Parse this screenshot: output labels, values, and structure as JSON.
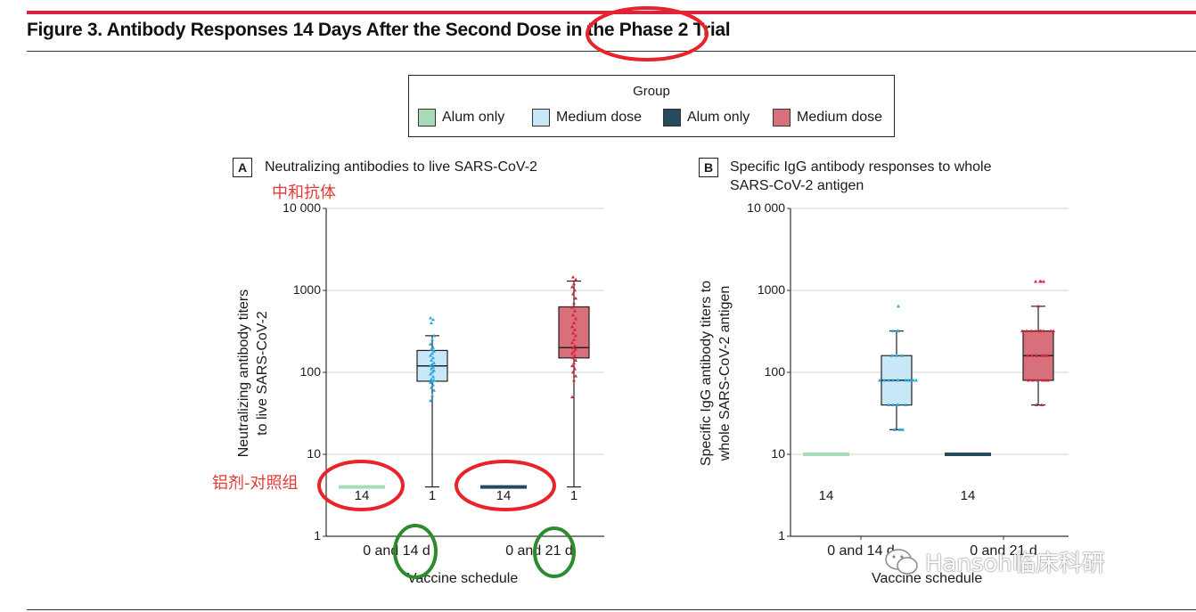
{
  "figure": {
    "title": "Figure 3. Antibody Responses 14 Days After the Second Dose in the Phase 2 Trial"
  },
  "legend": {
    "title": "Group",
    "items": [
      {
        "label": "Alum only",
        "color": "#a8dcb8"
      },
      {
        "label": "Medium dose",
        "color": "#c8e8f8"
      },
      {
        "label": "Alum only",
        "color": "#254c5c"
      },
      {
        "label": "Medium dose",
        "color": "#d8707c"
      }
    ]
  },
  "annotations": {
    "neutralizing_cn": "中和抗体",
    "alum_control_cn": "铝剂-对照组",
    "watermark": "Hansoh临床科研"
  },
  "chart_data": [
    {
      "type": "box",
      "panel": "A",
      "title": "Neutralizing antibodies to live SARS-CoV-2",
      "ylabel_lines": [
        "Neutralizing antibody titers",
        "to live SARS-CoV-2"
      ],
      "xlabel": "Vaccine schedule",
      "yscale": "log",
      "ylim": [
        1,
        10000
      ],
      "yticks": [
        1,
        10,
        100,
        1000,
        10000
      ],
      "ytick_labels": [
        "1",
        "10",
        "100",
        "1000",
        "10 000"
      ],
      "grid": true,
      "categories": [
        "0 and 14 d",
        "0 and 21 d"
      ],
      "groups": [
        {
          "name": "Alum only",
          "category": "0 and 14 d",
          "color": "#a8dcb8",
          "constant": 4,
          "n_label": "14"
        },
        {
          "name": "Medium dose",
          "category": "0 and 14 d",
          "color": "#c8e8f8",
          "point_color": "#29a8e0",
          "whisker_low": 4,
          "q1": 78,
          "median": 120,
          "q3": 185,
          "whisker_high": 280,
          "n_label": "1",
          "points": [
            45,
            52,
            60,
            65,
            70,
            75,
            78,
            80,
            82,
            88,
            95,
            100,
            105,
            110,
            115,
            120,
            125,
            130,
            140,
            150,
            160,
            170,
            180,
            190,
            200,
            220,
            250,
            280,
            400,
            440,
            460
          ]
        },
        {
          "name": "Alum only",
          "category": "0 and 21 d",
          "color": "#254c5c",
          "constant": 4,
          "n_label": "14"
        },
        {
          "name": "Medium dose",
          "category": "0 and 21 d",
          "color": "#d8707c",
          "point_color": "#d8243c",
          "whisker_low": 4,
          "q1": 150,
          "median": 200,
          "q3": 630,
          "whisker_high": 1300,
          "n_label": "1",
          "points": [
            50,
            80,
            90,
            100,
            110,
            120,
            130,
            140,
            150,
            160,
            170,
            180,
            190,
            200,
            210,
            230,
            250,
            280,
            300,
            330,
            360,
            400,
            450,
            500,
            560,
            620,
            700,
            800,
            900,
            1000,
            1100,
            1200,
            1350,
            1450
          ]
        }
      ]
    },
    {
      "type": "box",
      "panel": "B",
      "title": "Specific IgG antibody responses to whole SARS-CoV-2 antigen",
      "title_lines": [
        "Specific IgG antibody responses to whole",
        "SARS-CoV-2 antigen"
      ],
      "ylabel_lines": [
        "Specific IgG antibody titers to",
        "whole SARS-CoV-2 antigen"
      ],
      "xlabel": "Vaccine schedule",
      "yscale": "log",
      "ylim": [
        1,
        10000
      ],
      "yticks": [
        1,
        10,
        100,
        1000,
        10000
      ],
      "ytick_labels": [
        "1",
        "10",
        "100",
        "1000",
        "10 000"
      ],
      "grid": true,
      "categories": [
        "0 and 14 d",
        "0 and 21 d"
      ],
      "groups": [
        {
          "name": "Alum only",
          "category": "0 and 14 d",
          "color": "#a8dcb8",
          "constant": 10,
          "n_label": "14"
        },
        {
          "name": "Medium dose",
          "category": "0 and 14 d",
          "color": "#c8e8f8",
          "point_color": "#29a8e0",
          "whisker_low": 20,
          "q1": 40,
          "median": 80,
          "q3": 160,
          "whisker_high": 320,
          "n_label": "",
          "points": [
            20,
            20,
            20,
            20,
            40,
            40,
            40,
            40,
            40,
            80,
            80,
            80,
            80,
            80,
            80,
            80,
            80,
            80,
            80,
            80,
            80,
            160,
            160,
            160,
            320,
            320,
            320,
            640
          ]
        },
        {
          "name": "Alum only",
          "category": "0 and 21 d",
          "color": "#254c5c",
          "constant": 10,
          "n_label": "14"
        },
        {
          "name": "Medium dose",
          "category": "0 and 21 d",
          "color": "#d8707c",
          "point_color": "#d8243c",
          "whisker_low": 40,
          "q1": 80,
          "median": 160,
          "q3": 320,
          "whisker_high": 640,
          "n_label": "",
          "points": [
            40,
            40,
            40,
            80,
            80,
            80,
            80,
            80,
            80,
            80,
            160,
            160,
            160,
            160,
            160,
            160,
            160,
            320,
            320,
            320,
            320,
            320,
            320,
            320,
            320,
            320,
            640,
            1280,
            1280,
            1280,
            1280
          ]
        }
      ]
    }
  ]
}
